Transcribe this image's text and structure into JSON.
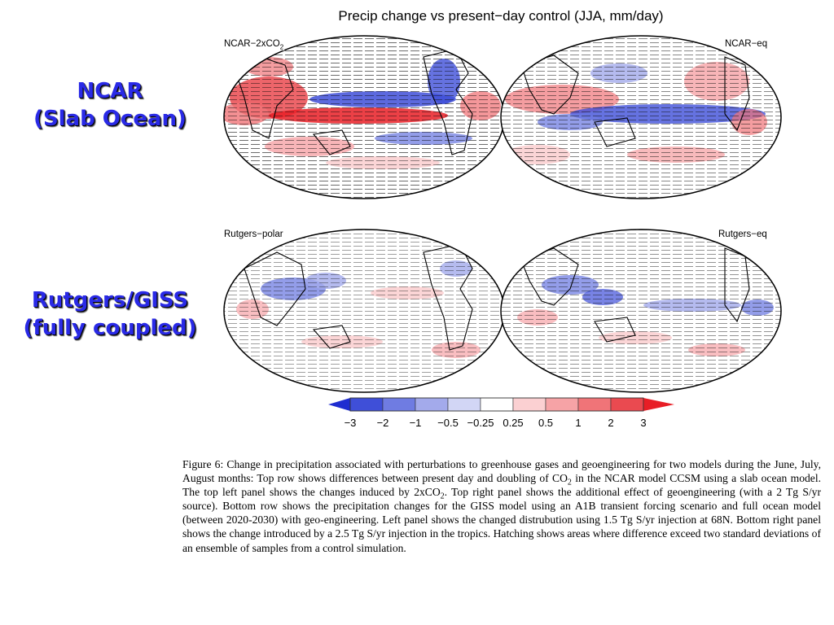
{
  "figure_title": "Precip change vs present−day control (JJA, mm/day)",
  "row_labels": {
    "top": [
      "NCAR",
      "(Slab Ocean)"
    ],
    "bottom": [
      "Rutgers/GISS",
      "(fully coupled)"
    ]
  },
  "panels": {
    "top_left": "NCAR−2xCO",
    "top_right": "NCAR−eq",
    "bottom_left": "Rutgers−polar",
    "bottom_right": "Rutgers−eq"
  },
  "colorbar": {
    "ticks": [
      "−3",
      "−2",
      "−1",
      "−0.5",
      "−0.25",
      "0.25",
      "0.5",
      "1",
      "2",
      "3"
    ],
    "colors": [
      "#1f2dd0",
      "#3f4fd8",
      "#6f7ce2",
      "#a3aaeb",
      "#d2d6f5",
      "#ffffff",
      "#fbd0d2",
      "#f6a3a6",
      "#f07478",
      "#ea4a50",
      "#e81e26"
    ]
  },
  "caption": {
    "p1": "Figure 6: Change in precipitation associated with perturbations to greenhouse gases and geoengineering for two models during the June, July, August months: Top row shows differences between present day and doubling of CO",
    "sub1": "2",
    "p2": " in the NCAR model CCSM using a slab ocean model. The top left panel shows the changes induced by 2xCO",
    "sub2": "2",
    "p3": ". Top right panel shows the additional effect of geoengineering (with a 2 Tg S/yr source). Bottom row shows the precipitation changes for the GISS model using an A1B transient forcing scenario and full ocean model (between 2020-2030) with geo-engineering. Left panel shows the changed distrubution using 1.5 Tg S/yr injection at 68N. Bottom right panel shows the change introduced by a 2.5 Tg S/yr injection in the tropics. Hatching shows areas where difference exceed two standard deviations of an ensemble of samples from a control simulation."
  }
}
